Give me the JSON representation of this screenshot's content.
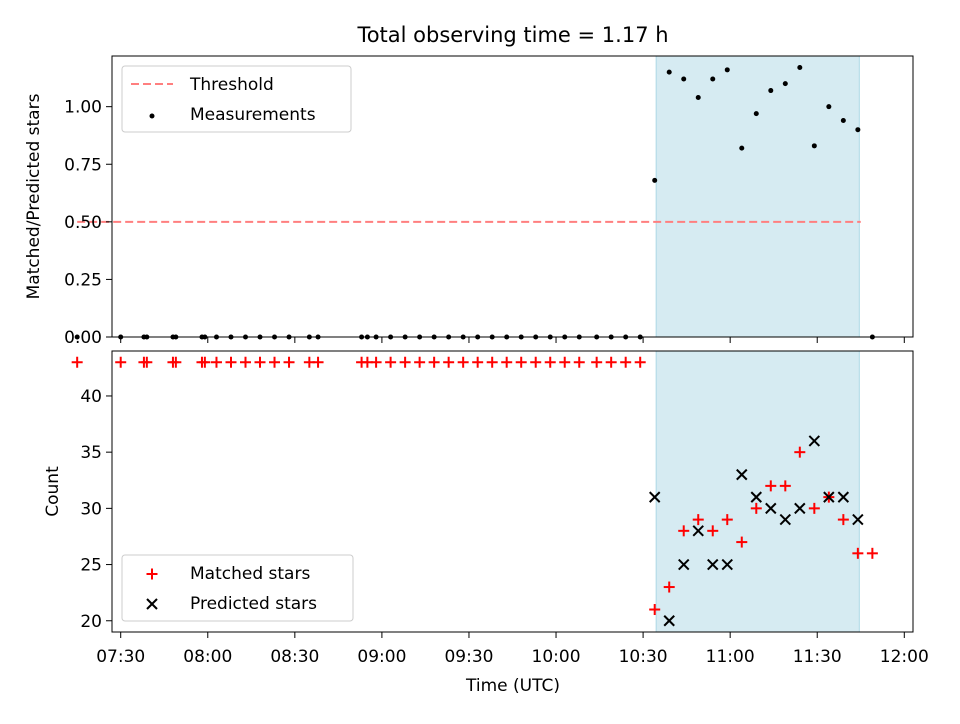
{
  "chart_data": [
    {
      "type": "scatter",
      "title": "Total observing time = 1.17 h",
      "ylabel": "Matched/Predicted stars",
      "ylim": [
        0,
        1.22
      ],
      "yticks": [
        0,
        0.25,
        0.5,
        0.75,
        1.0
      ],
      "ytick_labels": [
        "0.00",
        "0.25",
        "0.50",
        "0.75",
        "1.00"
      ],
      "xlim_minutes": [
        447,
        723
      ],
      "shaded_span_minutes": [
        634.5,
        704.5
      ],
      "shade_color": "#add8e6",
      "legend_position": "upper left",
      "threshold": {
        "name": "Threshold",
        "value": 0.5,
        "x_range_minutes": [
          435,
          705
        ],
        "color": "#ff7f7f"
      },
      "series": [
        {
          "name": "Measurements",
          "color": "#000000",
          "marker": "dot",
          "x_minutes": [
            435,
            450,
            458,
            459,
            468,
            469,
            478,
            479,
            483,
            488,
            493,
            498,
            503,
            508,
            515,
            518,
            533,
            535,
            538,
            543,
            548,
            553,
            558,
            563,
            568,
            573,
            578,
            583,
            588,
            593,
            598,
            603,
            608,
            614,
            619,
            624,
            629,
            634,
            639,
            644,
            649,
            654,
            659,
            664,
            669,
            674,
            679,
            684,
            689,
            694,
            699,
            704,
            709
          ],
          "values": [
            0,
            0,
            0,
            0,
            0,
            0,
            0,
            0,
            0,
            0,
            0,
            0,
            0,
            0,
            0,
            0,
            0,
            0,
            0,
            0,
            0,
            0,
            0,
            0,
            0,
            0,
            0,
            0,
            0,
            0,
            0,
            0,
            0,
            0,
            0,
            0,
            0,
            0.68,
            1.15,
            1.12,
            1.04,
            1.12,
            1.16,
            0.82,
            0.97,
            1.07,
            1.1,
            1.17,
            0.83,
            1.0,
            0.94,
            0.9,
            0
          ]
        }
      ]
    },
    {
      "type": "scatter",
      "xlabel": "Time (UTC)",
      "ylabel": "Count",
      "ylim": [
        19,
        44
      ],
      "yticks": [
        20,
        25,
        30,
        35,
        40
      ],
      "ytick_labels": [
        "20",
        "25",
        "30",
        "35",
        "40"
      ],
      "xlim_minutes": [
        447,
        723
      ],
      "xticks_minutes": [
        450,
        480,
        510,
        540,
        570,
        600,
        630,
        660,
        690,
        720
      ],
      "xtick_labels": [
        "07:30",
        "08:00",
        "08:30",
        "09:00",
        "09:30",
        "10:00",
        "10:30",
        "11:00",
        "11:30",
        "12:00"
      ],
      "shaded_span_minutes": [
        634.5,
        704.5
      ],
      "shade_color": "#add8e6",
      "legend_position": "lower left",
      "series": [
        {
          "name": "Matched stars",
          "color": "#ff0000",
          "marker": "plus",
          "x_minutes": [
            435,
            450,
            458,
            459,
            468,
            469,
            478,
            479,
            483,
            488,
            493,
            498,
            503,
            508,
            515,
            518,
            533,
            535,
            538,
            543,
            548,
            553,
            558,
            563,
            568,
            573,
            578,
            583,
            588,
            593,
            598,
            603,
            608,
            614,
            619,
            624,
            629,
            634,
            639,
            644,
            649,
            654,
            659,
            664,
            669,
            674,
            679,
            684,
            689,
            694,
            699,
            704,
            709
          ],
          "values": [
            43,
            43,
            43,
            43,
            43,
            43,
            43,
            43,
            43,
            43,
            43,
            43,
            43,
            43,
            43,
            43,
            43,
            43,
            43,
            43,
            43,
            43,
            43,
            43,
            43,
            43,
            43,
            43,
            43,
            43,
            43,
            43,
            43,
            43,
            43,
            43,
            43,
            21,
            23,
            28,
            29,
            28,
            29,
            27,
            30,
            32,
            32,
            35,
            30,
            31,
            29,
            26,
            26
          ]
        },
        {
          "name": "Predicted stars",
          "color": "#000000",
          "marker": "x",
          "x_minutes": [
            634,
            639,
            644,
            649,
            654,
            659,
            664,
            669,
            674,
            679,
            684,
            689,
            694,
            699,
            704
          ],
          "values": [
            31,
            20,
            25,
            28,
            25,
            25,
            33,
            31,
            30,
            29,
            30,
            36,
            31,
            31,
            29
          ]
        }
      ]
    }
  ]
}
